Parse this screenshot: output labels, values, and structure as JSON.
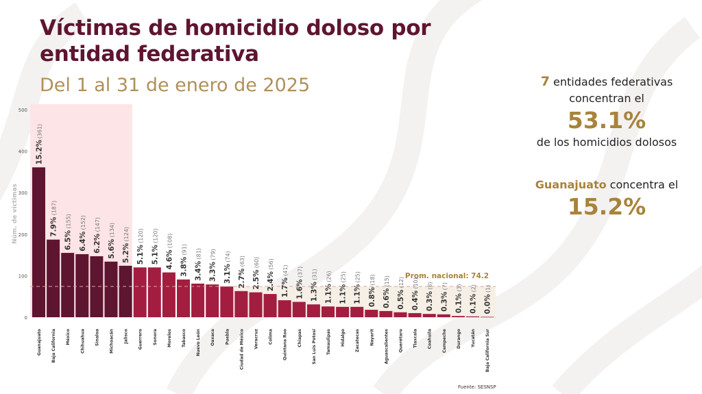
{
  "header": {
    "title_line1": "Víctimas de homicidio doloso por",
    "title_line2": "entidad federativa",
    "subtitle": "Del 1 al 31 de enero de 2025"
  },
  "side_panel": {
    "block1": {
      "highlight_count": "7",
      "line1_rest": " entidades federativas",
      "line2": "concentran el",
      "big_value": "53.1%",
      "line3": "de los homicidios dolosos"
    },
    "block2": {
      "highlight_state": "Guanajuato",
      "line1_rest": " concentra el",
      "big_value": "15.2%"
    }
  },
  "source": "Fuente: SESNSP",
  "colors": {
    "top_bar": "#5e1530",
    "other_bar": "#a31d40",
    "highlight_band": "#fde4e6",
    "average_band": "#f5efe6",
    "average_label": "#a8833a",
    "title": "#5e1530",
    "subtitle": "#b0905a"
  },
  "chart_data": {
    "type": "bar",
    "title": "Víctimas de homicidio doloso por entidad federativa",
    "subtitle": "Del 1 al 31 de enero de 2025",
    "xlabel": "",
    "ylabel": "Núm. de víctimas",
    "ylim": [
      0,
      500
    ],
    "yticks": [
      0,
      100,
      200,
      300,
      400,
      500
    ],
    "grid": false,
    "highlighted_top_n": 7,
    "average": {
      "label": "Prom. nacional: 74.2",
      "value": 74.2
    },
    "categories": [
      "Guanajuato",
      "Baja California",
      "México",
      "Chihuahua",
      "Sinaloa",
      "Michoacán",
      "Jalisco",
      "Guerrero",
      "Sonora",
      "Morelos",
      "Tabasco",
      "Nuevo León",
      "Oaxaca",
      "Puebla",
      "Ciudad de México",
      "Veracruz",
      "Colima",
      "Quintana Roo",
      "Chiapas",
      "San Luis Potosí",
      "Tamaulipas",
      "Hidalgo",
      "Zacatecas",
      "Nayarit",
      "Aguascalientes",
      "Querétaro",
      "Tlaxcala",
      "Coahuila",
      "Campeche",
      "Durango",
      "Yucatán",
      "Baja California Sur"
    ],
    "values": [
      361,
      187,
      155,
      152,
      147,
      134,
      124,
      120,
      120,
      108,
      91,
      81,
      79,
      74,
      63,
      60,
      56,
      41,
      37,
      31,
      26,
      25,
      25,
      18,
      15,
      12,
      10,
      8,
      7,
      3,
      2,
      1
    ],
    "percent_labels": [
      "15.2%",
      "7.9%",
      "6.5%",
      "6.4%",
      "6.2%",
      "5.6%",
      "5.2%",
      "5.1%",
      "5.1%",
      "4.6%",
      "3.8%",
      "3.4%",
      "3.3%",
      "3.1%",
      "2.7%",
      "2.5%",
      "2.4%",
      "1.7%",
      "1.6%",
      "1.3%",
      "1.1%",
      "1.1%",
      "1.1%",
      "0.8%",
      "0.6%",
      "0.5%",
      "0.4%",
      "0.3%",
      "0.3%",
      "0.1%",
      "0.1%",
      "0.0%"
    ],
    "count_labels": [
      "(361)",
      "(187)",
      "(155)",
      "(152)",
      "(147)",
      "(134)",
      "(124)",
      "(120)",
      "(120)",
      "(108)",
      "(91)",
      "(81)",
      "(79)",
      "(74)",
      "(63)",
      "(60)",
      "(56)",
      "(41)",
      "(37)",
      "(31)",
      "(26)",
      "(25)",
      "(25)",
      "(18)",
      "(15)",
      "(12)",
      "(10)",
      "(8)",
      "(7)",
      "(3)",
      "(2)",
      "(1)"
    ]
  }
}
